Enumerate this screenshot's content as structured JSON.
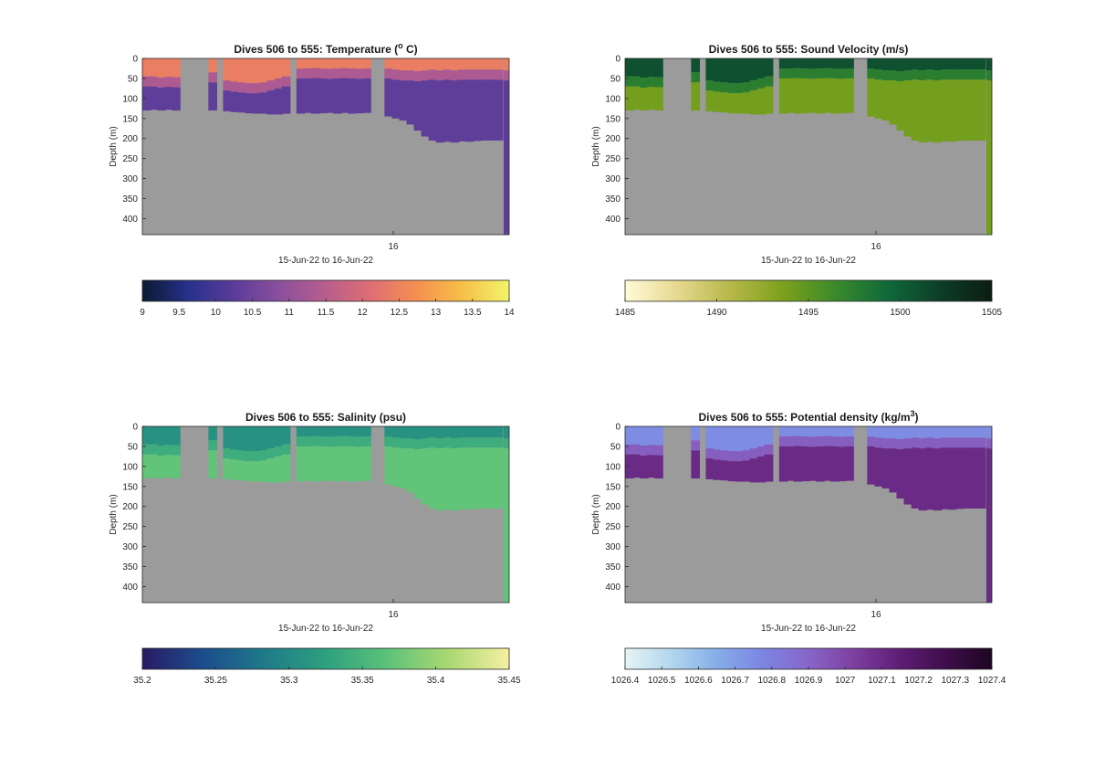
{
  "chart_data": [
    {
      "type": "heatmap",
      "title": "Dives 506 to 555: Temperature (",
      "title_sup": "o",
      "title_end": " C)",
      "ylabel": "Depth (m)",
      "xlabel": "15-Jun-22 to 16-Jun-22",
      "y_ticks": [
        "0",
        "50",
        "100",
        "150",
        "200",
        "250",
        "300",
        "350",
        "400"
      ],
      "x_ticks": [
        "16"
      ],
      "colorbar_ticks": [
        "9",
        "9.5",
        "10",
        "10.5",
        "11",
        "11.5",
        "12",
        "12.5",
        "13",
        "13.5",
        "14"
      ],
      "colorbar_range": [
        9,
        14
      ],
      "colorbar_colors": [
        "#0a1a30",
        "#27318a",
        "#5b3c9a",
        "#8b4f9d",
        "#b75e8d",
        "#df6f72",
        "#f59050",
        "#f6c048",
        "#f2f56a"
      ],
      "mixed_layer": {
        "depth": 20,
        "value": 12.4
      },
      "lower_value": 10.3,
      "profiles": [
        {
          "t": 0.0,
          "max_depth": 130,
          "ml": 45
        },
        {
          "t": 0.02,
          "max_depth": 128,
          "ml": 45
        },
        {
          "t": 0.04,
          "max_depth": 130,
          "ml": 48
        },
        {
          "t": 0.06,
          "max_depth": 128,
          "ml": 46
        },
        {
          "t": 0.08,
          "max_depth": 130,
          "ml": 47
        },
        {
          "t": 0.13,
          "max_depth": 0
        },
        {
          "t": 0.18,
          "max_depth": 130,
          "ml": 35
        },
        {
          "t": 0.2,
          "max_depth": 0
        },
        {
          "t": 0.22,
          "max_depth": 132,
          "ml": 55
        },
        {
          "t": 0.24,
          "max_depth": 134,
          "ml": 58
        },
        {
          "t": 0.26,
          "max_depth": 135,
          "ml": 60
        },
        {
          "t": 0.28,
          "max_depth": 137,
          "ml": 62
        },
        {
          "t": 0.3,
          "max_depth": 138,
          "ml": 62
        },
        {
          "t": 0.32,
          "max_depth": 138,
          "ml": 60
        },
        {
          "t": 0.34,
          "max_depth": 140,
          "ml": 55
        },
        {
          "t": 0.36,
          "max_depth": 140,
          "ml": 50
        },
        {
          "t": 0.38,
          "max_depth": 138,
          "ml": 45
        },
        {
          "t": 0.4,
          "max_depth": 0
        },
        {
          "t": 0.42,
          "max_depth": 138,
          "ml": 25
        },
        {
          "t": 0.44,
          "max_depth": 136,
          "ml": 25
        },
        {
          "t": 0.46,
          "max_depth": 138,
          "ml": 24
        },
        {
          "t": 0.48,
          "max_depth": 137,
          "ml": 25
        },
        {
          "t": 0.5,
          "max_depth": 136,
          "ml": 26
        },
        {
          "t": 0.52,
          "max_depth": 138,
          "ml": 25
        },
        {
          "t": 0.54,
          "max_depth": 136,
          "ml": 24
        },
        {
          "t": 0.56,
          "max_depth": 138,
          "ml": 25
        },
        {
          "t": 0.58,
          "max_depth": 137,
          "ml": 26
        },
        {
          "t": 0.6,
          "max_depth": 136,
          "ml": 25
        },
        {
          "t": 0.62,
          "max_depth": 0
        },
        {
          "t": 0.66,
          "max_depth": 145,
          "ml": 25
        },
        {
          "t": 0.68,
          "max_depth": 150,
          "ml": 28
        },
        {
          "t": 0.7,
          "max_depth": 155,
          "ml": 30
        },
        {
          "t": 0.72,
          "max_depth": 165,
          "ml": 30
        },
        {
          "t": 0.74,
          "max_depth": 180,
          "ml": 32
        },
        {
          "t": 0.76,
          "max_depth": 195,
          "ml": 30
        },
        {
          "t": 0.78,
          "max_depth": 205,
          "ml": 28
        },
        {
          "t": 0.8,
          "max_depth": 210,
          "ml": 30
        },
        {
          "t": 0.82,
          "max_depth": 208,
          "ml": 28
        },
        {
          "t": 0.84,
          "max_depth": 210,
          "ml": 30
        },
        {
          "t": 0.86,
          "max_depth": 207,
          "ml": 28
        },
        {
          "t": 0.88,
          "max_depth": 208,
          "ml": 28
        },
        {
          "t": 0.9,
          "max_depth": 206,
          "ml": 28
        },
        {
          "t": 0.92,
          "max_depth": 205,
          "ml": 28
        },
        {
          "t": 0.94,
          "max_depth": 205,
          "ml": 28
        },
        {
          "t": 0.96,
          "max_depth": 205,
          "ml": 28
        },
        {
          "t": 0.985,
          "max_depth": 440,
          "ml": 30
        }
      ]
    },
    {
      "type": "heatmap",
      "title": "Dives 506 to 555: Sound Velocity (m/s)",
      "title_sup": "",
      "title_end": "",
      "ylabel": "Depth (m)",
      "xlabel": "15-Jun-22 to 16-Jun-22",
      "y_ticks": [
        "0",
        "50",
        "100",
        "150",
        "200",
        "250",
        "300",
        "350",
        "400"
      ],
      "x_ticks": [
        "16"
      ],
      "colorbar_ticks": [
        "1485",
        "1490",
        "1495",
        "1500",
        "1505"
      ],
      "colorbar_range": [
        1485,
        1505
      ],
      "colorbar_colors": [
        "#fffbd8",
        "#e6d890",
        "#b6b84a",
        "#7ea11c",
        "#3c8a2a",
        "#0f6a3a",
        "#0d3e28",
        "#0b1d12"
      ],
      "mixed_layer": {
        "depth": 20,
        "value": 1501
      },
      "lower_value": 1494,
      "profiles": "shared"
    },
    {
      "type": "heatmap",
      "title": "Dives 506 to 555: Salinity (psu)",
      "title_sup": "",
      "title_end": "",
      "ylabel": "Depth (m)",
      "xlabel": "15-Jun-22 to 16-Jun-22",
      "y_ticks": [
        "0",
        "50",
        "100",
        "150",
        "200",
        "250",
        "300",
        "350",
        "400"
      ],
      "x_ticks": [
        "16"
      ],
      "colorbar_ticks": [
        "35.2",
        "35.25",
        "35.3",
        "35.35",
        "35.4",
        "35.45"
      ],
      "colorbar_range": [
        35.2,
        35.45
      ],
      "colorbar_colors": [
        "#2a1b63",
        "#1c4d8d",
        "#1f7a8a",
        "#2da07e",
        "#5cc27a",
        "#a9d872",
        "#f6f0a3"
      ],
      "mixed_layer": {
        "depth": 20,
        "value": 35.31
      },
      "lower_value": 35.37,
      "profiles": "shared"
    },
    {
      "type": "heatmap",
      "title": "Dives 506 to 555: Potential density (kg/m",
      "title_sup": "3",
      "title_end": ")",
      "ylabel": "Depth (m)",
      "xlabel": "15-Jun-22 to 16-Jun-22",
      "y_ticks": [
        "0",
        "50",
        "100",
        "150",
        "200",
        "250",
        "300",
        "350",
        "400"
      ],
      "x_ticks": [
        "16"
      ],
      "colorbar_ticks": [
        "1026.4",
        "1026.5",
        "1026.6",
        "1026.7",
        "1026.8",
        "1026.9",
        "1027",
        "1027.1",
        "1027.2",
        "1027.3",
        "1027.4"
      ],
      "colorbar_range": [
        1026.4,
        1027.4
      ],
      "colorbar_colors": [
        "#e6f4f4",
        "#b3d6ee",
        "#86aee8",
        "#7c85e2",
        "#8766c8",
        "#7d3f9f",
        "#5e1d75",
        "#3e0d4a",
        "#1e0622"
      ],
      "mixed_layer": {
        "depth": 20,
        "value": 1026.75
      },
      "lower_value": 1027.1,
      "profiles": "shared"
    }
  ],
  "colors": {
    "no_data": "#9b9b9b",
    "axis": "#262626",
    "background": "#ffffff"
  }
}
